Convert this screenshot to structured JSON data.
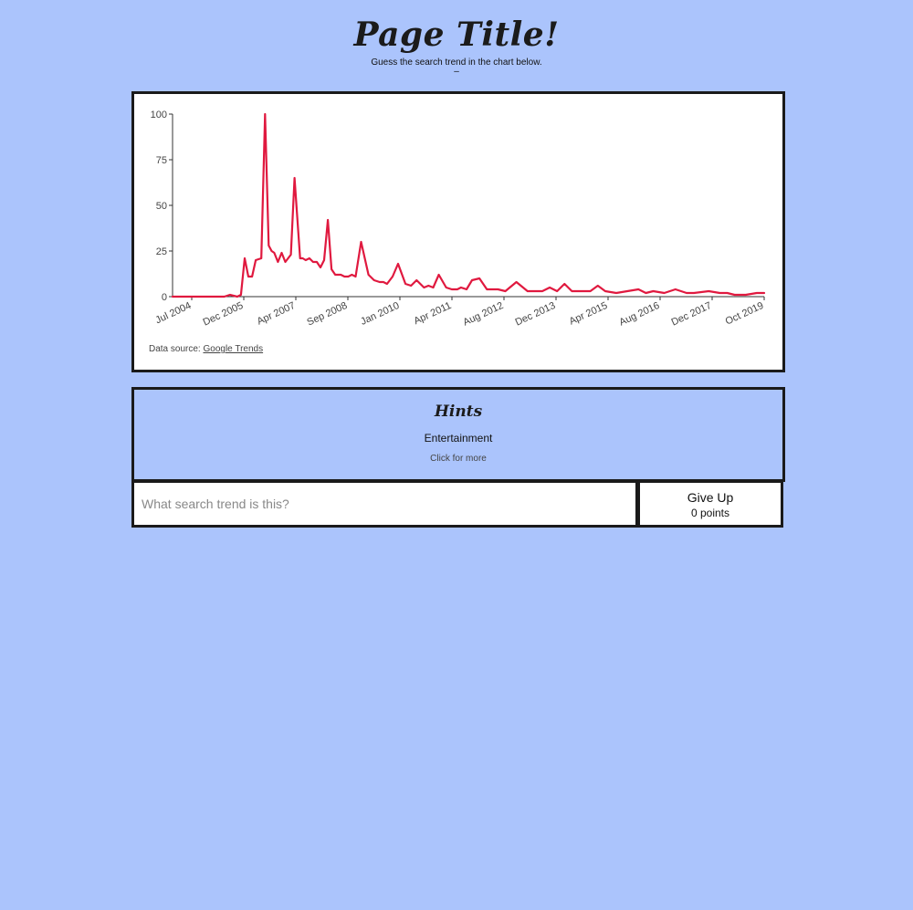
{
  "header": {
    "title": "Page Title!",
    "subtitle": "Guess the search trend in the chart below.",
    "dash": "–"
  },
  "chart_data": {
    "type": "line",
    "y_ticks": [
      "0",
      "25",
      "50",
      "75",
      "100"
    ],
    "ylim": [
      0,
      100
    ],
    "x_ticks": [
      "Jul 2004",
      "Dec 2005",
      "Apr 2007",
      "Sep 2008",
      "Jan 2010",
      "Apr 2011",
      "Aug 2012",
      "Dec 2013",
      "Apr 2015",
      "Aug 2016",
      "Dec 2017",
      "Oct 2019"
    ],
    "line_color": "#e0193f",
    "grid": false,
    "series": [
      {
        "x": [
          2004.0,
          2005.4,
          2005.55,
          2005.75,
          2005.85,
          2005.95,
          2006.05,
          2006.15,
          2006.25,
          2006.4,
          2006.5,
          2006.6,
          2006.68,
          2006.75,
          2006.85,
          2006.95,
          2007.05,
          2007.2,
          2007.3,
          2007.45,
          2007.52,
          2007.6,
          2007.7,
          2007.8,
          2007.9,
          2008.0,
          2008.1,
          2008.2,
          2008.3,
          2008.4,
          2008.55,
          2008.65,
          2008.75,
          2008.85,
          2008.95,
          2009.1,
          2009.3,
          2009.45,
          2009.6,
          2009.7,
          2009.8,
          2009.95,
          2010.1,
          2010.3,
          2010.45,
          2010.6,
          2010.8,
          2010.92,
          2011.05,
          2011.2,
          2011.4,
          2011.55,
          2011.7,
          2011.8,
          2011.95,
          2012.1,
          2012.3,
          2012.5,
          2012.7,
          2012.8,
          2013.0,
          2013.3,
          2013.6,
          2013.8,
          2014.0,
          2014.2,
          2014.4,
          2014.6,
          2014.8,
          2015.0,
          2015.3,
          2015.5,
          2015.7,
          2016.0,
          2016.3,
          2016.6,
          2016.8,
          2017.0,
          2017.3,
          2017.6,
          2017.9,
          2018.1,
          2018.5,
          2018.8,
          2019.0,
          2019.2,
          2019.5,
          2019.8,
          2020.0
        ],
        "y": [
          0,
          0,
          1,
          0,
          1,
          21,
          11,
          11,
          20,
          21,
          100,
          28,
          25,
          24,
          19,
          24,
          19,
          23,
          65,
          21,
          21,
          20,
          21,
          19,
          19,
          16,
          20,
          42,
          15,
          12,
          12,
          11,
          11,
          12,
          11,
          30,
          12,
          9,
          8,
          8,
          7,
          11,
          18,
          7,
          6,
          9,
          5,
          6,
          5,
          12,
          5,
          4,
          4,
          5,
          4,
          9,
          10,
          4,
          4,
          4,
          3,
          8,
          3,
          3,
          3,
          5,
          3,
          7,
          3,
          3,
          3,
          6,
          3,
          2,
          3,
          4,
          2,
          3,
          2,
          4,
          2,
          2,
          3,
          2,
          2,
          1,
          1,
          2,
          2
        ]
      }
    ]
  },
  "source": {
    "prefix": "Data source: ",
    "link": "Google Trends"
  },
  "hints": {
    "title": "Hints",
    "category": "Entertainment",
    "more": "Click for more"
  },
  "guess": {
    "placeholder": "What search trend is this?",
    "giveup_label": "Give Up",
    "points": "0 points"
  }
}
